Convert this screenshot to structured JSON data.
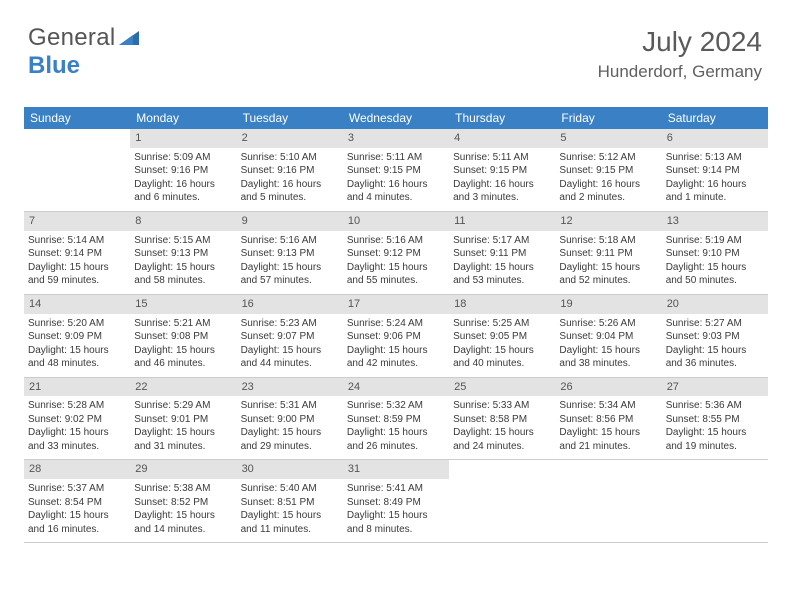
{
  "logo": {
    "text1": "General",
    "text2": "Blue"
  },
  "header": {
    "month_title": "July 2024",
    "location": "Hunderdorf, Germany"
  },
  "weekday_header_color": "#3a80c4",
  "daynum_bar_color": "#e3e3e3",
  "weekdays": [
    "Sunday",
    "Monday",
    "Tuesday",
    "Wednesday",
    "Thursday",
    "Friday",
    "Saturday"
  ],
  "weeks": [
    [
      {
        "num": "",
        "sunrise": "",
        "sunset": "",
        "daylight1": "",
        "daylight2": ""
      },
      {
        "num": "1",
        "sunrise": "Sunrise: 5:09 AM",
        "sunset": "Sunset: 9:16 PM",
        "daylight1": "Daylight: 16 hours",
        "daylight2": "and 6 minutes."
      },
      {
        "num": "2",
        "sunrise": "Sunrise: 5:10 AM",
        "sunset": "Sunset: 9:16 PM",
        "daylight1": "Daylight: 16 hours",
        "daylight2": "and 5 minutes."
      },
      {
        "num": "3",
        "sunrise": "Sunrise: 5:11 AM",
        "sunset": "Sunset: 9:15 PM",
        "daylight1": "Daylight: 16 hours",
        "daylight2": "and 4 minutes."
      },
      {
        "num": "4",
        "sunrise": "Sunrise: 5:11 AM",
        "sunset": "Sunset: 9:15 PM",
        "daylight1": "Daylight: 16 hours",
        "daylight2": "and 3 minutes."
      },
      {
        "num": "5",
        "sunrise": "Sunrise: 5:12 AM",
        "sunset": "Sunset: 9:15 PM",
        "daylight1": "Daylight: 16 hours",
        "daylight2": "and 2 minutes."
      },
      {
        "num": "6",
        "sunrise": "Sunrise: 5:13 AM",
        "sunset": "Sunset: 9:14 PM",
        "daylight1": "Daylight: 16 hours",
        "daylight2": "and 1 minute."
      }
    ],
    [
      {
        "num": "7",
        "sunrise": "Sunrise: 5:14 AM",
        "sunset": "Sunset: 9:14 PM",
        "daylight1": "Daylight: 15 hours",
        "daylight2": "and 59 minutes."
      },
      {
        "num": "8",
        "sunrise": "Sunrise: 5:15 AM",
        "sunset": "Sunset: 9:13 PM",
        "daylight1": "Daylight: 15 hours",
        "daylight2": "and 58 minutes."
      },
      {
        "num": "9",
        "sunrise": "Sunrise: 5:16 AM",
        "sunset": "Sunset: 9:13 PM",
        "daylight1": "Daylight: 15 hours",
        "daylight2": "and 57 minutes."
      },
      {
        "num": "10",
        "sunrise": "Sunrise: 5:16 AM",
        "sunset": "Sunset: 9:12 PM",
        "daylight1": "Daylight: 15 hours",
        "daylight2": "and 55 minutes."
      },
      {
        "num": "11",
        "sunrise": "Sunrise: 5:17 AM",
        "sunset": "Sunset: 9:11 PM",
        "daylight1": "Daylight: 15 hours",
        "daylight2": "and 53 minutes."
      },
      {
        "num": "12",
        "sunrise": "Sunrise: 5:18 AM",
        "sunset": "Sunset: 9:11 PM",
        "daylight1": "Daylight: 15 hours",
        "daylight2": "and 52 minutes."
      },
      {
        "num": "13",
        "sunrise": "Sunrise: 5:19 AM",
        "sunset": "Sunset: 9:10 PM",
        "daylight1": "Daylight: 15 hours",
        "daylight2": "and 50 minutes."
      }
    ],
    [
      {
        "num": "14",
        "sunrise": "Sunrise: 5:20 AM",
        "sunset": "Sunset: 9:09 PM",
        "daylight1": "Daylight: 15 hours",
        "daylight2": "and 48 minutes."
      },
      {
        "num": "15",
        "sunrise": "Sunrise: 5:21 AM",
        "sunset": "Sunset: 9:08 PM",
        "daylight1": "Daylight: 15 hours",
        "daylight2": "and 46 minutes."
      },
      {
        "num": "16",
        "sunrise": "Sunrise: 5:23 AM",
        "sunset": "Sunset: 9:07 PM",
        "daylight1": "Daylight: 15 hours",
        "daylight2": "and 44 minutes."
      },
      {
        "num": "17",
        "sunrise": "Sunrise: 5:24 AM",
        "sunset": "Sunset: 9:06 PM",
        "daylight1": "Daylight: 15 hours",
        "daylight2": "and 42 minutes."
      },
      {
        "num": "18",
        "sunrise": "Sunrise: 5:25 AM",
        "sunset": "Sunset: 9:05 PM",
        "daylight1": "Daylight: 15 hours",
        "daylight2": "and 40 minutes."
      },
      {
        "num": "19",
        "sunrise": "Sunrise: 5:26 AM",
        "sunset": "Sunset: 9:04 PM",
        "daylight1": "Daylight: 15 hours",
        "daylight2": "and 38 minutes."
      },
      {
        "num": "20",
        "sunrise": "Sunrise: 5:27 AM",
        "sunset": "Sunset: 9:03 PM",
        "daylight1": "Daylight: 15 hours",
        "daylight2": "and 36 minutes."
      }
    ],
    [
      {
        "num": "21",
        "sunrise": "Sunrise: 5:28 AM",
        "sunset": "Sunset: 9:02 PM",
        "daylight1": "Daylight: 15 hours",
        "daylight2": "and 33 minutes."
      },
      {
        "num": "22",
        "sunrise": "Sunrise: 5:29 AM",
        "sunset": "Sunset: 9:01 PM",
        "daylight1": "Daylight: 15 hours",
        "daylight2": "and 31 minutes."
      },
      {
        "num": "23",
        "sunrise": "Sunrise: 5:31 AM",
        "sunset": "Sunset: 9:00 PM",
        "daylight1": "Daylight: 15 hours",
        "daylight2": "and 29 minutes."
      },
      {
        "num": "24",
        "sunrise": "Sunrise: 5:32 AM",
        "sunset": "Sunset: 8:59 PM",
        "daylight1": "Daylight: 15 hours",
        "daylight2": "and 26 minutes."
      },
      {
        "num": "25",
        "sunrise": "Sunrise: 5:33 AM",
        "sunset": "Sunset: 8:58 PM",
        "daylight1": "Daylight: 15 hours",
        "daylight2": "and 24 minutes."
      },
      {
        "num": "26",
        "sunrise": "Sunrise: 5:34 AM",
        "sunset": "Sunset: 8:56 PM",
        "daylight1": "Daylight: 15 hours",
        "daylight2": "and 21 minutes."
      },
      {
        "num": "27",
        "sunrise": "Sunrise: 5:36 AM",
        "sunset": "Sunset: 8:55 PM",
        "daylight1": "Daylight: 15 hours",
        "daylight2": "and 19 minutes."
      }
    ],
    [
      {
        "num": "28",
        "sunrise": "Sunrise: 5:37 AM",
        "sunset": "Sunset: 8:54 PM",
        "daylight1": "Daylight: 15 hours",
        "daylight2": "and 16 minutes."
      },
      {
        "num": "29",
        "sunrise": "Sunrise: 5:38 AM",
        "sunset": "Sunset: 8:52 PM",
        "daylight1": "Daylight: 15 hours",
        "daylight2": "and 14 minutes."
      },
      {
        "num": "30",
        "sunrise": "Sunrise: 5:40 AM",
        "sunset": "Sunset: 8:51 PM",
        "daylight1": "Daylight: 15 hours",
        "daylight2": "and 11 minutes."
      },
      {
        "num": "31",
        "sunrise": "Sunrise: 5:41 AM",
        "sunset": "Sunset: 8:49 PM",
        "daylight1": "Daylight: 15 hours",
        "daylight2": "and 8 minutes."
      },
      {
        "num": "",
        "sunrise": "",
        "sunset": "",
        "daylight1": "",
        "daylight2": ""
      },
      {
        "num": "",
        "sunrise": "",
        "sunset": "",
        "daylight1": "",
        "daylight2": ""
      },
      {
        "num": "",
        "sunrise": "",
        "sunset": "",
        "daylight1": "",
        "daylight2": ""
      }
    ]
  ]
}
